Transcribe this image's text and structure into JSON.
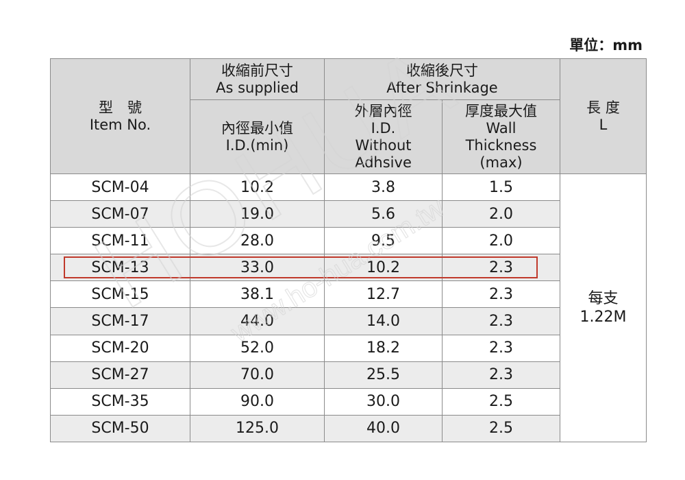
{
  "unit_label": "單位：mm",
  "header": {
    "model": {
      "zh": "型　號",
      "en": "Item No."
    },
    "as_supplied": {
      "zh": "收縮前尺寸",
      "en": "As supplied"
    },
    "after_shrinkage": {
      "zh": "收縮後尺寸",
      "en": "After Shrinkage"
    },
    "length": {
      "zh": "長 度",
      "en": "L"
    },
    "id_min": {
      "zh": "內徑最小值",
      "en": "I.D.(min)"
    },
    "id_without": {
      "zh": "外層內徑",
      "en1": "I.D.",
      "en2": "Without",
      "en3": "Adhsive"
    },
    "wall": {
      "zh": "厚度最大值",
      "en1": "Wall",
      "en2": "Thickness",
      "en3": "(max)"
    }
  },
  "rows": [
    {
      "model": "SCM-04",
      "id_min": "10.2",
      "id_after": "3.8",
      "wall": "1.5"
    },
    {
      "model": "SCM-07",
      "id_min": "19.0",
      "id_after": "5.6",
      "wall": "2.0"
    },
    {
      "model": "SCM-11",
      "id_min": "28.0",
      "id_after": "9.5",
      "wall": "2.0"
    },
    {
      "model": "SCM-13",
      "id_min": "33.0",
      "id_after": "10.2",
      "wall": "2.3"
    },
    {
      "model": "SCM-15",
      "id_min": "38.1",
      "id_after": "12.7",
      "wall": "2.3"
    },
    {
      "model": "SCM-17",
      "id_min": "44.0",
      "id_after": "14.0",
      "wall": "2.3"
    },
    {
      "model": "SCM-20",
      "id_min": "52.0",
      "id_after": "18.2",
      "wall": "2.3"
    },
    {
      "model": "SCM-27",
      "id_min": "70.0",
      "id_after": "25.5",
      "wall": "2.3"
    },
    {
      "model": "SCM-35",
      "id_min": "90.0",
      "id_after": "30.0",
      "wall": "2.5"
    },
    {
      "model": "SCM-50",
      "id_min": "125.0",
      "id_after": "40.0",
      "wall": "2.5"
    }
  ],
  "length_value": {
    "line1": "每支",
    "line2": "1.22M"
  },
  "highlighted_row": "SCM-13",
  "colors": {
    "header_bg": "#d9d9d9",
    "row_alt_bg": "#ececec",
    "highlight": "#c0392b",
    "border": "#8a8a8a"
  },
  "watermark": {
    "brand": "HOHUA",
    "site": "www.ho-hua.com.tw"
  }
}
